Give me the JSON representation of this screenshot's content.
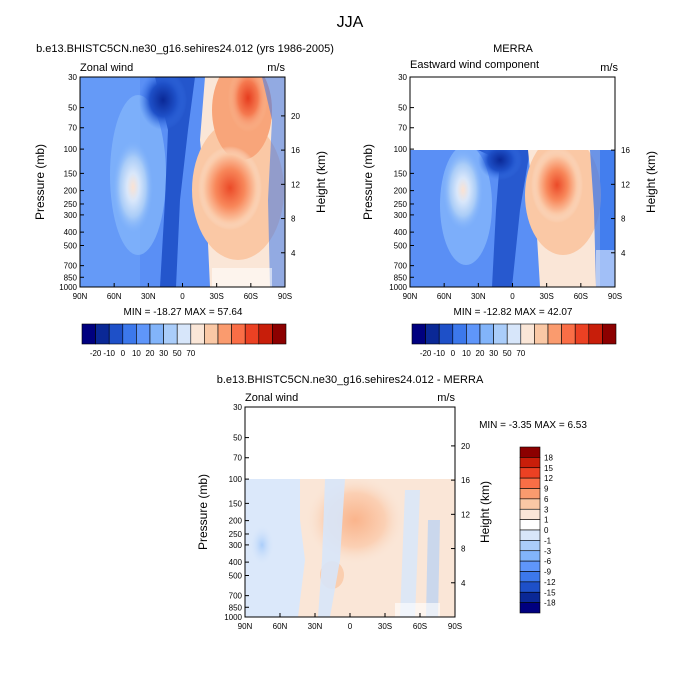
{
  "title": "JJA",
  "chart_data": [
    {
      "type": "heatmap",
      "title": "b.e13.BHISTC5CN.ne30_g16.sehires24.012 (yrs 1986-2005)",
      "left_label": "Zonal wind",
      "right_label": "m/s",
      "ylabel": "Pressure (mb)",
      "ylabel_right": "Height (km)",
      "x_ticks": [
        "90N",
        "60N",
        "30N",
        "0",
        "30S",
        "60S",
        "90S"
      ],
      "x_values": [
        90,
        60,
        30,
        0,
        -30,
        -60,
        -90
      ],
      "y_ticks": [
        "30",
        "50",
        "70",
        "100",
        "150",
        "200",
        "250",
        "300",
        "400",
        "500",
        "700",
        "850",
        "1000"
      ],
      "y_values": [
        30,
        50,
        70,
        100,
        150,
        200,
        250,
        300,
        400,
        500,
        700,
        850,
        1000
      ],
      "height_ticks": [
        "20",
        "16",
        "12",
        "8",
        "4"
      ],
      "height_values": [
        20,
        16,
        12,
        8,
        4
      ],
      "ylim": [
        1000,
        30
      ],
      "top_of_data_mb": 30,
      "stats": "MIN = -18.27  MAX =  57.64",
      "levels": [
        -20,
        -10,
        0,
        10,
        20,
        30,
        50,
        70
      ],
      "features": [
        {
          "name": "polar-night-jet",
          "lat": -53,
          "p": 45,
          "value": 57.64
        },
        {
          "name": "sh-subtropical-jet",
          "lat": -32,
          "p": 200,
          "value": 40
        },
        {
          "name": "nh-subtropical-jet",
          "lat": 43,
          "p": 200,
          "value": 20
        },
        {
          "name": "tropical-easterlies",
          "lat": 12,
          "p": 90,
          "value": -18.27
        }
      ]
    },
    {
      "type": "heatmap",
      "title": "MERRA",
      "left_label": "Eastward wind component",
      "right_label": "m/s",
      "ylabel": "Pressure (mb)",
      "ylabel_right": "Height (km)",
      "x_ticks": [
        "90N",
        "60N",
        "30N",
        "0",
        "30S",
        "60S",
        "90S"
      ],
      "x_values": [
        90,
        60,
        30,
        0,
        -30,
        -60,
        -90
      ],
      "y_ticks": [
        "30",
        "50",
        "70",
        "100",
        "150",
        "200",
        "250",
        "300",
        "400",
        "500",
        "700",
        "850",
        "1000"
      ],
      "y_values": [
        30,
        50,
        70,
        100,
        150,
        200,
        250,
        300,
        400,
        500,
        700,
        850,
        1000
      ],
      "height_ticks": [
        "16",
        "12",
        "8",
        "4"
      ],
      "height_values": [
        16,
        12,
        8,
        4
      ],
      "ylim": [
        1000,
        30
      ],
      "top_of_data_mb": 100,
      "stats": "MIN = -12.82  MAX =  42.07",
      "levels": [
        -20,
        -10,
        0,
        10,
        20,
        30,
        50,
        70
      ],
      "features": [
        {
          "name": "sh-subtropical-jet",
          "lat": -30,
          "p": 200,
          "value": 42.07
        },
        {
          "name": "nh-subtropical-jet",
          "lat": 43,
          "p": 200,
          "value": 22
        },
        {
          "name": "tropical-easterlies",
          "lat": 12,
          "p": 110,
          "value": -12.82
        }
      ]
    },
    {
      "type": "heatmap",
      "title": "b.e13.BHISTC5CN.ne30_g16.sehires24.012 - MERRA",
      "left_label": "Zonal wind",
      "right_label": "m/s",
      "ylabel": "Pressure (mb)",
      "ylabel_right": "Height (km)",
      "x_ticks": [
        "90N",
        "60N",
        "30N",
        "0",
        "30S",
        "60S",
        "90S"
      ],
      "x_values": [
        90,
        60,
        30,
        0,
        -30,
        -60,
        -90
      ],
      "y_ticks": [
        "30",
        "50",
        "70",
        "100",
        "150",
        "200",
        "250",
        "300",
        "400",
        "500",
        "700",
        "850",
        "1000"
      ],
      "y_values": [
        30,
        50,
        70,
        100,
        150,
        200,
        250,
        300,
        400,
        500,
        700,
        850,
        1000
      ],
      "height_ticks": [
        "20",
        "16",
        "12",
        "8",
        "4"
      ],
      "height_values": [
        20,
        16,
        12,
        8,
        4
      ],
      "ylim": [
        1000,
        30
      ],
      "top_of_data_mb": 100,
      "stats": "MIN =  -3.35  MAX =   6.53",
      "levels": [
        -18,
        -15,
        -12,
        -9,
        -6,
        -3,
        -1,
        0,
        1,
        3,
        6,
        9,
        12,
        15,
        18
      ],
      "features": [
        {
          "name": "sh-positive-bias",
          "lat": -20,
          "p": 180,
          "value": 6.53
        },
        {
          "name": "nh-negative-bias",
          "lat": 55,
          "p": 300,
          "value": -3.35
        }
      ]
    }
  ],
  "colorbars": {
    "top": {
      "labels": [
        "-20",
        "-10",
        "0",
        "10",
        "20",
        "30",
        "50",
        "70"
      ],
      "colors": [
        "#00007f",
        "#0a2896",
        "#1e50c8",
        "#3c78eb",
        "#5f96fa",
        "#82b4fa",
        "#aacdfa",
        "#d7e6fa",
        "#fae6d7",
        "#fac8a5",
        "#fa9b6e",
        "#fa6e46",
        "#eb4123",
        "#c81e0a",
        "#8c0000"
      ]
    },
    "bottom": {
      "labels": [
        "18",
        "15",
        "12",
        "9",
        "6",
        "3",
        "1",
        "0",
        "-1",
        "-3",
        "-6",
        "-9",
        "-12",
        "-15",
        "-18"
      ],
      "colors": [
        "#8c0000",
        "#c81e0a",
        "#eb4123",
        "#fa6e46",
        "#fa9b6e",
        "#fac8a5",
        "#fae6d7",
        "#ffffff",
        "#d7e6fa",
        "#aacdfa",
        "#82b4fa",
        "#5f96fa",
        "#3c78eb",
        "#1e50c8",
        "#0a2896",
        "#00007f"
      ]
    }
  }
}
